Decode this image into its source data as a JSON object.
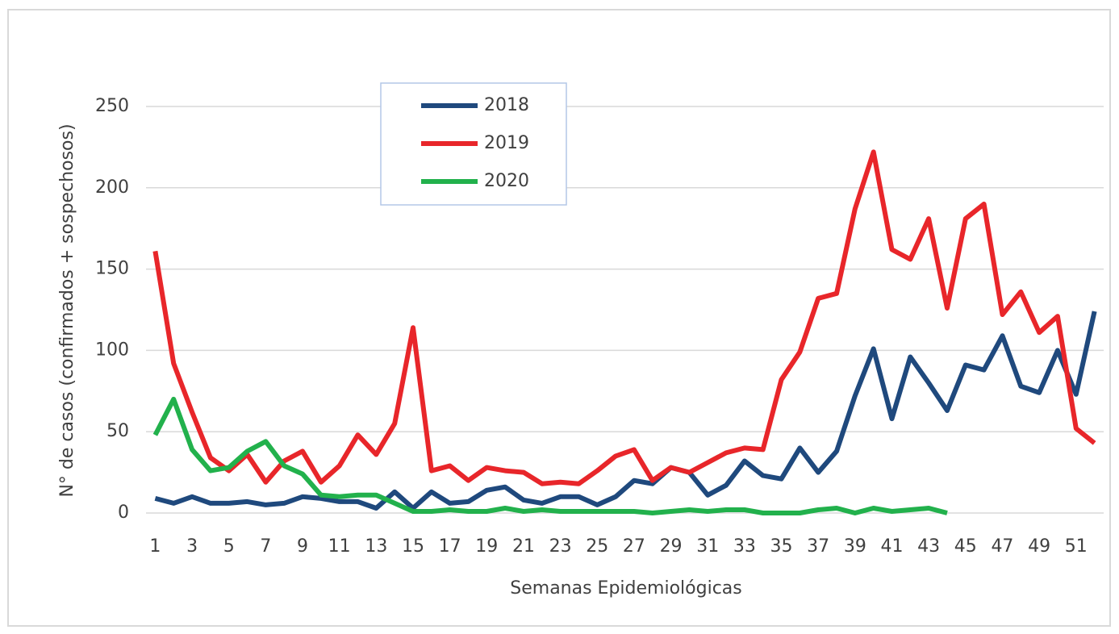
{
  "chart_data": {
    "type": "line",
    "x_label": "Semanas Epidemiológicas",
    "y_label": "N° de casos (confirmados + sospechosos)",
    "categories": [
      1,
      null,
      3,
      null,
      5,
      null,
      7,
      null,
      9,
      null,
      11,
      null,
      13,
      null,
      15,
      null,
      17,
      null,
      19,
      null,
      21,
      null,
      23,
      null,
      25,
      null,
      27,
      null,
      29,
      null,
      31,
      null,
      33,
      null,
      35,
      null,
      37,
      null,
      39,
      null,
      41,
      null,
      43,
      null,
      45,
      null,
      47,
      null,
      49,
      null,
      51,
      null
    ],
    "series": [
      {
        "name": "2018",
        "color": "#1f497d",
        "values": [
          9,
          6,
          10,
          6,
          6,
          7,
          5,
          6,
          10,
          9,
          7,
          7,
          3,
          13,
          3,
          13,
          6,
          7,
          14,
          16,
          8,
          6,
          10,
          10,
          5,
          10,
          20,
          18,
          28,
          25,
          11,
          17,
          32,
          23,
          21,
          40,
          25,
          38,
          72,
          101,
          58,
          96,
          80,
          63,
          91,
          88,
          109,
          78,
          74,
          100,
          73,
          124
        ]
      },
      {
        "name": "2019",
        "color": "#e8262a",
        "values": [
          161,
          92,
          62,
          34,
          26,
          36,
          19,
          32,
          38,
          19,
          29,
          48,
          36,
          55,
          114,
          26,
          29,
          20,
          28,
          26,
          25,
          18,
          19,
          18,
          26,
          35,
          39,
          20,
          28,
          25,
          31,
          37,
          40,
          39,
          82,
          99,
          132,
          135,
          187,
          222,
          162,
          156,
          181,
          126,
          181,
          190,
          122,
          136,
          111,
          121,
          52,
          43
        ]
      },
      {
        "name": "2020",
        "color": "#22b14c",
        "values": [
          48,
          70,
          39,
          26,
          28,
          38,
          44,
          29,
          24,
          11,
          10,
          11,
          11,
          6,
          1,
          1,
          2,
          1,
          1,
          3,
          1,
          2,
          1,
          1,
          1,
          1,
          1,
          0,
          1,
          2,
          1,
          2,
          2,
          0,
          0,
          0,
          2,
          3,
          0,
          3,
          1,
          2,
          3,
          0,
          null,
          null,
          null,
          null,
          null,
          null,
          null,
          null
        ]
      }
    ],
    "ylim": [
      0,
      250
    ],
    "yticks": [
      0,
      50,
      100,
      150,
      200,
      250
    ],
    "grid": true,
    "legend": "top-center"
  }
}
